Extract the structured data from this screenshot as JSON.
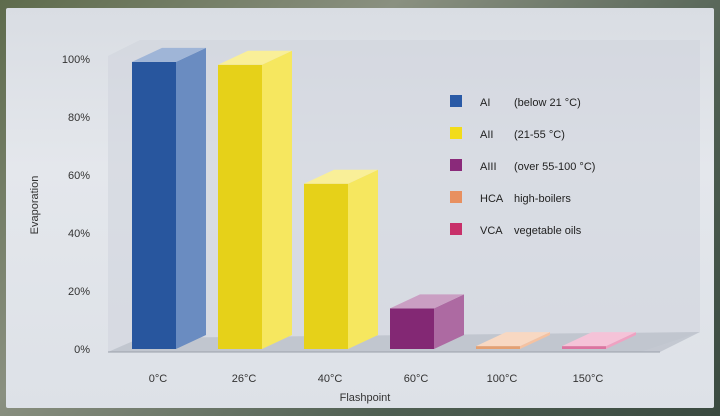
{
  "chart_data": {
    "type": "bar",
    "style": "3d",
    "categories": [
      "0°C",
      "26°C",
      "40°C",
      "60°C",
      "100°C",
      "150°C"
    ],
    "values": [
      99,
      98,
      57,
      14,
      1,
      1
    ],
    "colors": [
      "#2a5aa6",
      "#f2dc1a",
      "#f2dc1a",
      "#8a2a7a",
      "#f0a878",
      "#e87aa8"
    ],
    "xlabel": "Flashpoint",
    "ylabel": "Evaporation",
    "ylim": [
      0,
      100
    ],
    "yticks": [
      "100%",
      "80%",
      "60%",
      "40%",
      "20%",
      "0%"
    ],
    "grid": false,
    "legend_position": "right",
    "legend": [
      {
        "code": "AI",
        "desc": "(below 21 °C)",
        "color": "#2a5aa6"
      },
      {
        "code": "AII",
        "desc": "(21-55 °C)",
        "color": "#f2dc1a"
      },
      {
        "code": "AIII",
        "desc": "(over 55-100 °C)",
        "color": "#8a2a7a"
      },
      {
        "code": "HCA",
        "desc": "high-boilers",
        "color": "#e89060"
      },
      {
        "code": "VCA",
        "desc": "vegetable oils",
        "color": "#c8306a"
      }
    ]
  }
}
